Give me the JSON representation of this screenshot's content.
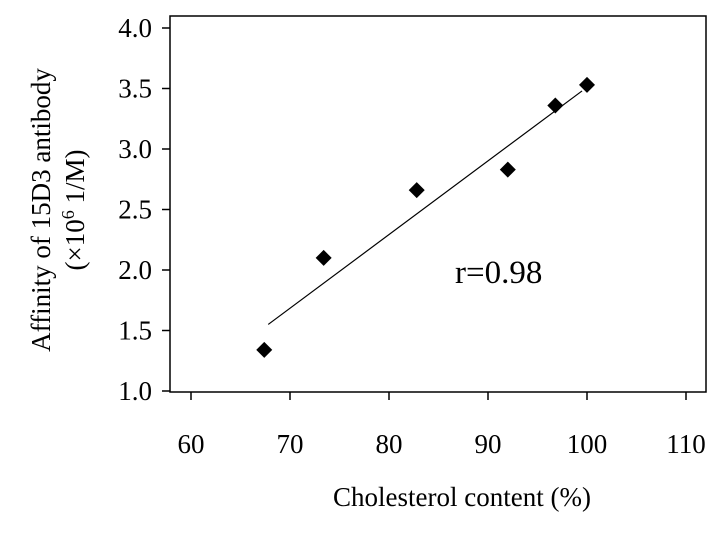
{
  "chart_data": {
    "type": "scatter",
    "title": "",
    "xlabel": "Cholesterol content (%)",
    "ylabel": {
      "line1": "Affinity of 15D3 antibody",
      "line2_pre": "(×10",
      "line2_sup": "6",
      "line2_post": " 1/M)"
    },
    "xlim": [
      60,
      110
    ],
    "ylim": [
      1.0,
      4.0
    ],
    "xticks": [
      "60",
      "70",
      "80",
      "90",
      "100",
      "110"
    ],
    "yticks": [
      "1.0",
      "1.5",
      "2.0",
      "2.5",
      "3.0",
      "3.5",
      "4.0"
    ],
    "points": [
      {
        "x": 67.4,
        "y": 1.34
      },
      {
        "x": 73.4,
        "y": 2.1
      },
      {
        "x": 82.8,
        "y": 2.66
      },
      {
        "x": 92.0,
        "y": 2.83
      },
      {
        "x": 96.8,
        "y": 3.36
      },
      {
        "x": 100.0,
        "y": 3.53
      }
    ],
    "trendline": {
      "x": [
        67.8,
        99.5
      ],
      "y": [
        1.55,
        3.48
      ]
    },
    "annotation": "r=0.98",
    "grid": false,
    "legend": "none",
    "marker": "diamond",
    "color": "#000000"
  }
}
